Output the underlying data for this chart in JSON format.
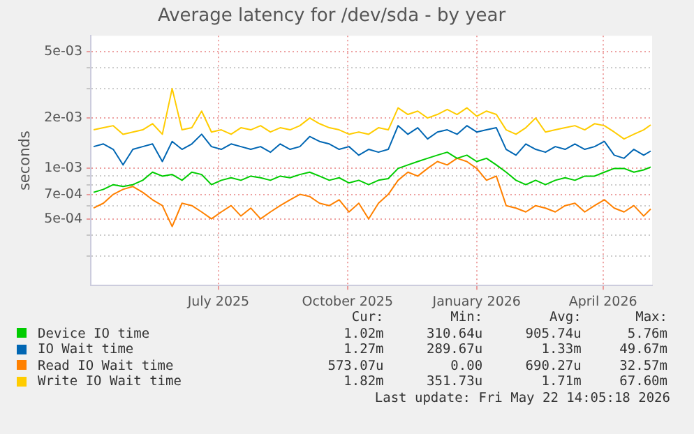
{
  "chart_data": {
    "type": "line",
    "title": "Average latency for /dev/sda - by year",
    "ylabel": "seconds",
    "log": "y",
    "grid": true,
    "legend": "bottom",
    "marker": "none",
    "line_style": "solid",
    "xlim": [
      "2025-04-01",
      "2026-05-06"
    ],
    "xticks": [
      {
        "value": "2025-07-01",
        "label": "July 2025"
      },
      {
        "value": "2025-10-01",
        "label": "October 2025"
      },
      {
        "value": "2026-01-01",
        "label": "January 2026"
      },
      {
        "value": "2026-04-01",
        "label": "April 2026"
      }
    ],
    "ylim": [
      0.0002,
      0.0062
    ],
    "yticks": [
      {
        "value": 0.0003,
        "label": null
      },
      {
        "value": 0.0004,
        "label": null
      },
      {
        "value": 0.0005,
        "label": "5e-04"
      },
      {
        "value": 0.0006,
        "label": null
      },
      {
        "value": 0.0007,
        "label": "7e-04"
      },
      {
        "value": 0.0008,
        "label": null
      },
      {
        "value": 0.0009,
        "label": null
      },
      {
        "value": 0.001,
        "label": "1e-03"
      },
      {
        "value": 0.002,
        "label": "2e-03"
      },
      {
        "value": 0.003,
        "label": null
      },
      {
        "value": 0.004,
        "label": null
      },
      {
        "value": 0.005,
        "label": "5e-03"
      }
    ],
    "x": [
      "2025-04-03",
      "2025-04-10",
      "2025-04-17",
      "2025-04-24",
      "2025-05-01",
      "2025-05-08",
      "2025-05-15",
      "2025-05-22",
      "2025-05-29",
      "2025-06-05",
      "2025-06-12",
      "2025-06-19",
      "2025-06-26",
      "2025-07-03",
      "2025-07-10",
      "2025-07-17",
      "2025-07-24",
      "2025-07-31",
      "2025-08-07",
      "2025-08-14",
      "2025-08-21",
      "2025-08-28",
      "2025-09-04",
      "2025-09-11",
      "2025-09-18",
      "2025-09-25",
      "2025-10-02",
      "2025-10-09",
      "2025-10-16",
      "2025-10-23",
      "2025-10-30",
      "2025-11-06",
      "2025-11-13",
      "2025-11-20",
      "2025-11-27",
      "2025-12-04",
      "2025-12-11",
      "2025-12-18",
      "2025-12-25",
      "2026-01-01",
      "2026-01-08",
      "2026-01-15",
      "2026-01-22",
      "2026-01-29",
      "2026-02-05",
      "2026-02-12",
      "2026-02-19",
      "2026-02-26",
      "2026-03-05",
      "2026-03-12",
      "2026-03-19",
      "2026-03-26",
      "2026-04-02",
      "2026-04-09",
      "2026-04-16",
      "2026-04-23",
      "2026-04-30",
      "2026-05-05"
    ],
    "series": [
      {
        "name": "Device IO time",
        "color": "#00cc00",
        "values": [
          0.00072,
          0.00075,
          0.0008,
          0.00078,
          0.0008,
          0.00085,
          0.00095,
          0.0009,
          0.00092,
          0.00085,
          0.00095,
          0.00092,
          0.0008,
          0.00085,
          0.00088,
          0.00085,
          0.0009,
          0.00088,
          0.00085,
          0.0009,
          0.00088,
          0.00092,
          0.00095,
          0.0009,
          0.00085,
          0.00088,
          0.00082,
          0.00085,
          0.0008,
          0.00085,
          0.00087,
          0.001,
          0.00105,
          0.0011,
          0.00115,
          0.0012,
          0.00125,
          0.00115,
          0.0012,
          0.0011,
          0.00115,
          0.00105,
          0.00095,
          0.00085,
          0.0008,
          0.00085,
          0.0008,
          0.00085,
          0.00088,
          0.00085,
          0.0009,
          0.0009,
          0.00095,
          0.001,
          0.001,
          0.00095,
          0.00098,
          0.00102
        ]
      },
      {
        "name": "IO Wait time",
        "color": "#0066b3",
        "values": [
          0.00135,
          0.0014,
          0.0013,
          0.00105,
          0.0013,
          0.00135,
          0.0014,
          0.0011,
          0.00145,
          0.0013,
          0.0014,
          0.0016,
          0.00135,
          0.0013,
          0.0014,
          0.00135,
          0.0013,
          0.00135,
          0.00125,
          0.0014,
          0.0013,
          0.00135,
          0.00155,
          0.00145,
          0.0014,
          0.0013,
          0.00135,
          0.0012,
          0.0013,
          0.00125,
          0.0013,
          0.0018,
          0.0016,
          0.00175,
          0.0015,
          0.00165,
          0.0017,
          0.0016,
          0.0018,
          0.00165,
          0.0017,
          0.00175,
          0.0013,
          0.0012,
          0.0014,
          0.0013,
          0.00125,
          0.00135,
          0.0013,
          0.0014,
          0.0013,
          0.00135,
          0.00145,
          0.0012,
          0.00115,
          0.0013,
          0.0012,
          0.00127
        ]
      },
      {
        "name": "Read IO Wait time",
        "color": "#ff8000",
        "values": [
          0.00058,
          0.00062,
          0.0007,
          0.00075,
          0.00078,
          0.00072,
          0.00065,
          0.0006,
          0.00045,
          0.00062,
          0.0006,
          0.00055,
          0.0005,
          0.00055,
          0.0006,
          0.00052,
          0.00058,
          0.0005,
          0.00055,
          0.0006,
          0.00065,
          0.0007,
          0.00068,
          0.00062,
          0.0006,
          0.00065,
          0.00055,
          0.00062,
          0.0005,
          0.00062,
          0.0007,
          0.00085,
          0.00095,
          0.0009,
          0.001,
          0.0011,
          0.00105,
          0.00115,
          0.0011,
          0.001,
          0.00085,
          0.0009,
          0.0006,
          0.00058,
          0.00055,
          0.0006,
          0.00058,
          0.00055,
          0.0006,
          0.00062,
          0.00055,
          0.0006,
          0.00065,
          0.00058,
          0.00055,
          0.0006,
          0.00052,
          0.000573
        ]
      },
      {
        "name": "Write IO Wait time",
        "color": "#ffcc00",
        "values": [
          0.0017,
          0.00175,
          0.0018,
          0.0016,
          0.00165,
          0.0017,
          0.00185,
          0.0016,
          0.003,
          0.0017,
          0.00175,
          0.0022,
          0.00165,
          0.0017,
          0.0016,
          0.00175,
          0.0017,
          0.0018,
          0.00165,
          0.00175,
          0.0017,
          0.0018,
          0.002,
          0.00185,
          0.00175,
          0.0017,
          0.0016,
          0.00165,
          0.0016,
          0.00175,
          0.0017,
          0.0023,
          0.0021,
          0.0022,
          0.002,
          0.0021,
          0.00225,
          0.0021,
          0.0023,
          0.00205,
          0.0022,
          0.0021,
          0.0017,
          0.0016,
          0.00175,
          0.002,
          0.00165,
          0.0017,
          0.00175,
          0.0018,
          0.0017,
          0.00185,
          0.0018,
          0.00165,
          0.0015,
          0.0016,
          0.0017,
          0.00182
        ]
      }
    ],
    "annotations": [
      "Cur:",
      "Min:",
      "Avg:",
      "Max:",
      "1.02m",
      "310.64u",
      "905.74u",
      "5.76m",
      "1.27m",
      "289.67u",
      "1.33m",
      "49.67m",
      "573.07u",
      "0.00",
      "690.27u",
      "32.57m",
      "1.82m",
      "351.73u",
      "1.71m",
      "67.60m",
      "Last update: Fri May 22 14:05:18 2026"
    ]
  }
}
